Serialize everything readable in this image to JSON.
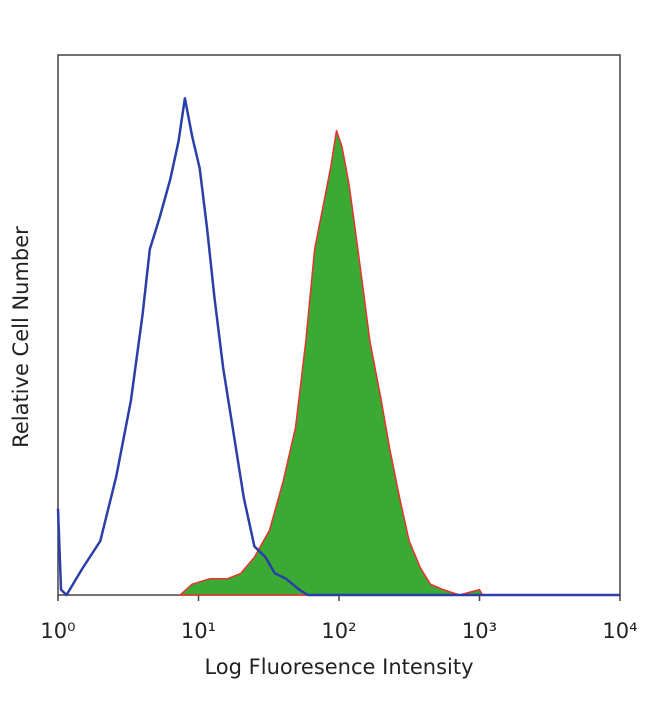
{
  "chart_data": {
    "type": "histogram-overlay",
    "xlabel": "Log Fluoresence Intensity",
    "ylabel": "Relative Cell Number",
    "xscale": "log",
    "xlim": [
      1,
      10000
    ],
    "xticks": [
      {
        "value": 1,
        "label": "10⁰"
      },
      {
        "value": 10,
        "label": "10¹"
      },
      {
        "value": 100,
        "label": "10²"
      },
      {
        "value": 1000,
        "label": "10³"
      },
      {
        "value": 10000,
        "label": "10⁴"
      }
    ],
    "ylim": [
      0,
      100
    ],
    "series": [
      {
        "color": "#e8322e",
        "fill": "#3aaa35",
        "x": [
          7.4,
          9,
          12,
          16,
          20,
          25,
          32,
          40,
          49,
          58,
          67,
          77,
          87,
          96,
          105,
          118,
          130,
          148,
          166,
          200,
          230,
          270,
          316,
          380,
          447,
          550,
          720,
          1000,
          1050
        ],
        "values": [
          0,
          2,
          3,
          3,
          4,
          7,
          12,
          21,
          31,
          47,
          64,
          72,
          79,
          86,
          83,
          76,
          68,
          57,
          47,
          36,
          27,
          18,
          10,
          5,
          2,
          1,
          0,
          1,
          0
        ]
      },
      {
        "color": "#2b3fa8",
        "x": [
          1,
          1.05,
          1.15,
          1.5,
          2,
          2.6,
          3.3,
          4,
          4.5,
          5.3,
          6.3,
          7.2,
          8,
          9,
          10.2,
          11.5,
          13,
          15,
          18,
          21,
          25,
          30,
          35,
          42,
          52,
          60,
          100,
          10000
        ],
        "values": [
          16,
          1,
          0,
          5,
          10,
          22,
          36,
          52,
          64,
          70,
          77,
          84,
          92,
          85,
          79,
          68,
          55,
          42,
          29,
          18,
          9,
          7,
          4,
          3,
          1,
          0,
          0,
          0
        ]
      }
    ]
  }
}
